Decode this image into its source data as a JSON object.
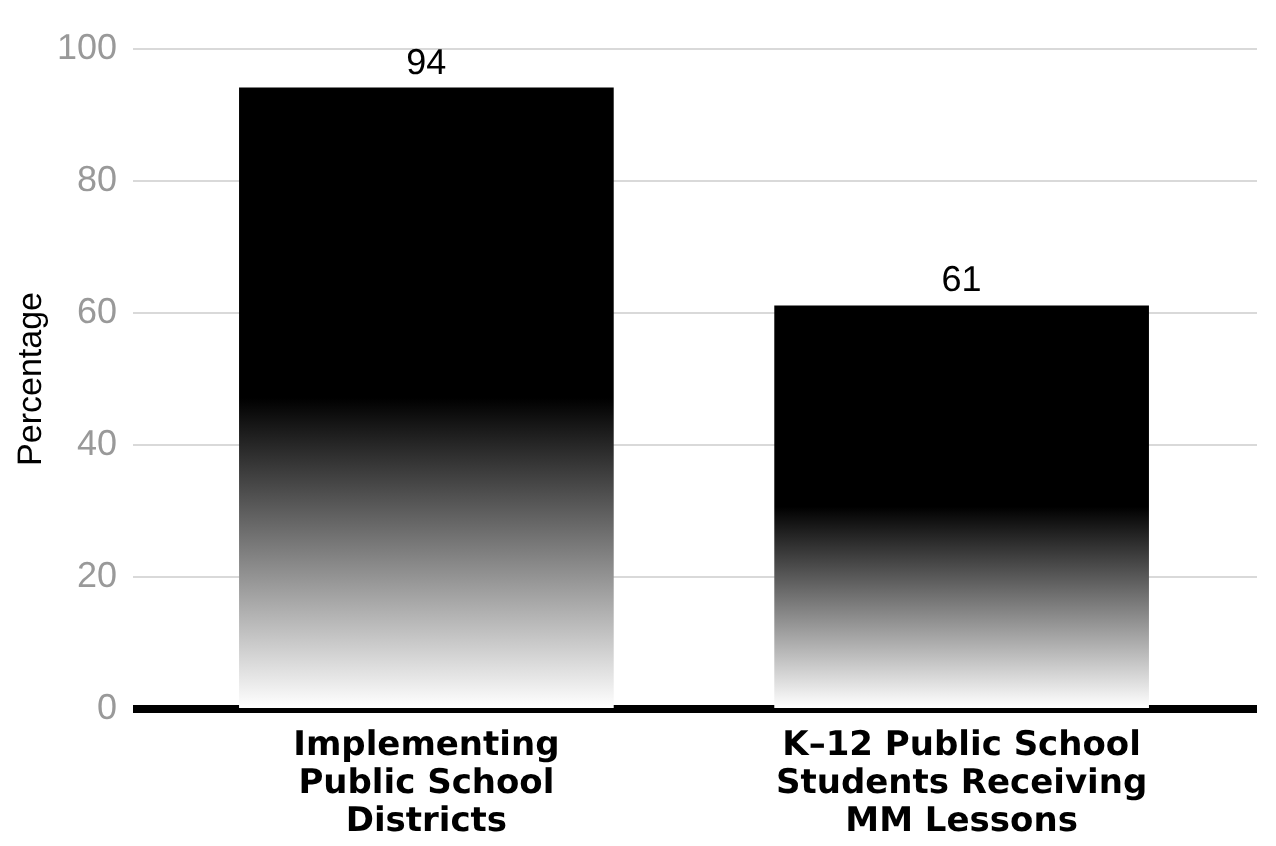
{
  "chart_data": {
    "type": "bar",
    "ylabel": "Percentage",
    "categories": [
      "Implementing Public School Districts",
      "K–12 Public School Students Receiving MM Lessons"
    ],
    "values": [
      94,
      61
    ],
    "color": "#000000",
    "ylim": [
      0,
      100
    ],
    "yticks": [
      0,
      20,
      40,
      60,
      80,
      100
    ],
    "grid": "y",
    "data_labels": true
  }
}
